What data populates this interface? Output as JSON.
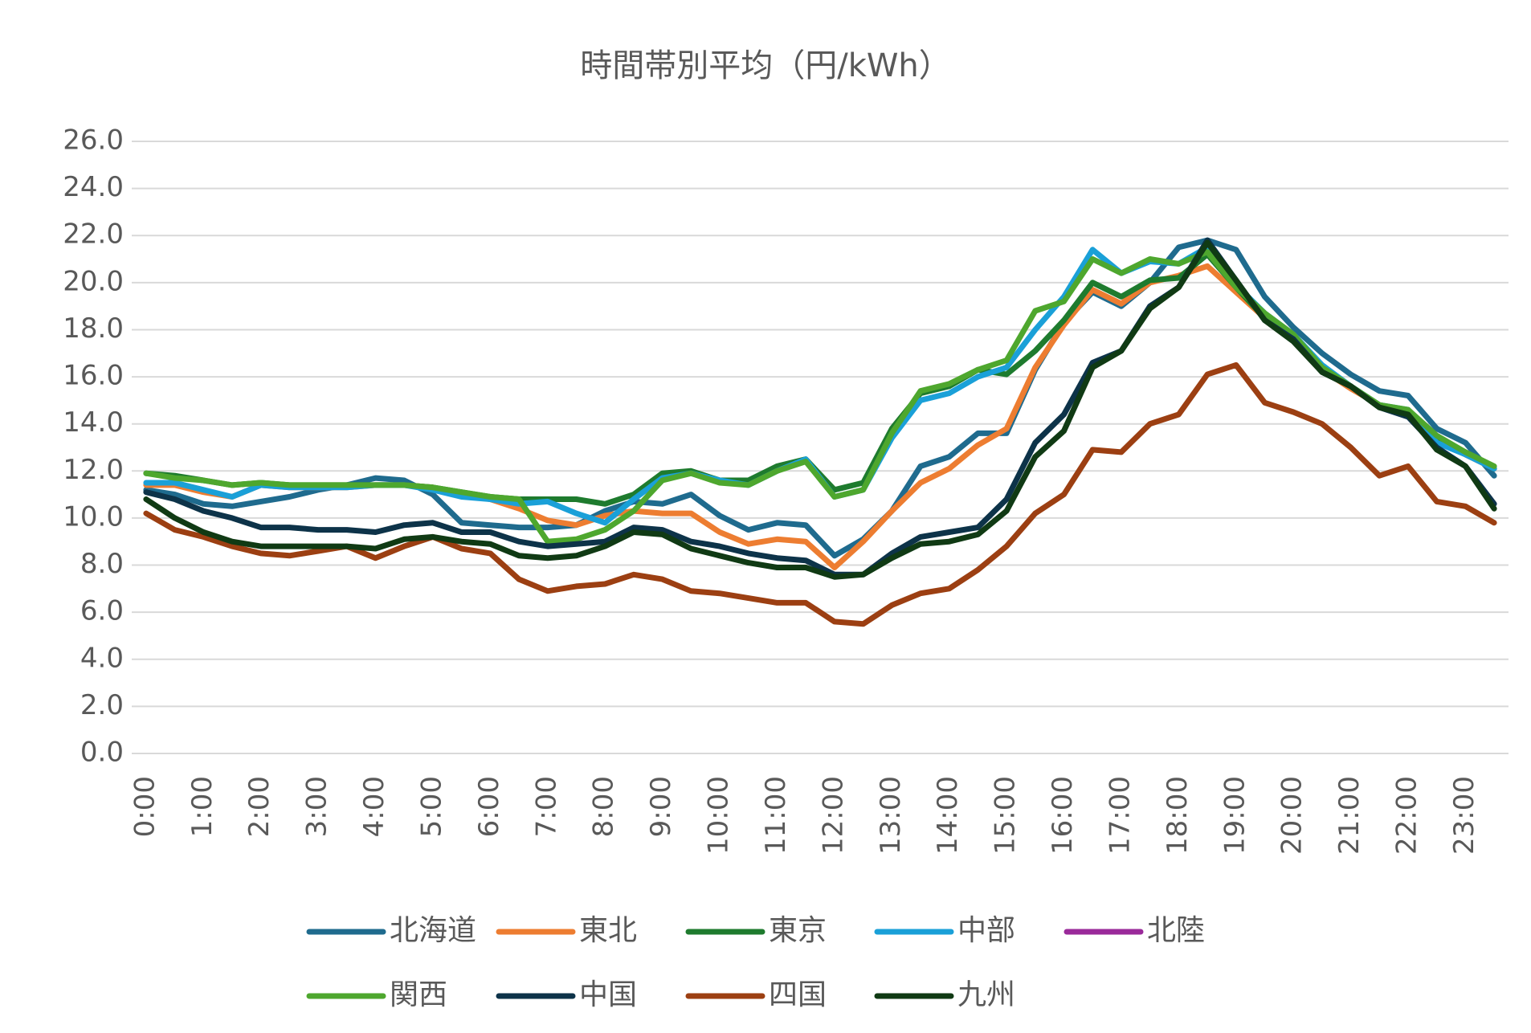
{
  "chart_data": {
    "type": "line",
    "title": "時間帯別平均（円/kWh）",
    "categories": [
      "0:00",
      null,
      "1:00",
      null,
      "2:00",
      null,
      "3:00",
      null,
      "4:00",
      null,
      "5:00",
      null,
      "6:00",
      null,
      "7:00",
      null,
      "8:00",
      null,
      "9:00",
      null,
      "10:00",
      null,
      "11:00",
      null,
      "12:00",
      null,
      "13:00",
      null,
      "14:00",
      null,
      "15:00",
      null,
      "16:00",
      null,
      "17:00",
      null,
      "18:00",
      null,
      "19:00",
      null,
      "20:00",
      null,
      "21:00",
      null,
      "22:00",
      null,
      "23:00",
      null
    ],
    "series": [
      {
        "name": "北海道",
        "color": "#1f6b8e",
        "values": [
          11.2,
          11.0,
          10.6,
          10.5,
          10.7,
          10.9,
          11.2,
          11.4,
          11.7,
          11.6,
          11.0,
          9.8,
          9.7,
          9.6,
          9.6,
          9.7,
          10.3,
          10.7,
          10.6,
          11.0,
          10.1,
          9.5,
          9.8,
          9.7,
          8.4,
          9.1,
          10.3,
          12.2,
          12.6,
          13.6,
          13.6,
          16.3,
          18.3,
          19.6,
          19.0,
          20.0,
          21.5,
          21.8,
          21.4,
          19.4,
          18.1,
          17.0,
          16.1,
          15.4,
          15.2,
          13.8,
          13.2,
          11.8
        ]
      },
      {
        "name": "東北",
        "color": "#ed7d31",
        "values": [
          11.4,
          11.4,
          11.1,
          10.9,
          11.4,
          11.3,
          11.3,
          11.3,
          11.4,
          11.4,
          11.3,
          11.0,
          10.8,
          10.4,
          9.9,
          9.7,
          10.1,
          10.3,
          10.2,
          10.2,
          9.4,
          8.9,
          9.1,
          9.0,
          7.9,
          9.0,
          10.3,
          11.5,
          12.1,
          13.1,
          13.8,
          16.4,
          18.2,
          19.7,
          19.1,
          20.0,
          20.3,
          20.7,
          19.6,
          18.5,
          17.6,
          16.3,
          15.5,
          14.8,
          14.5,
          13.3,
          12.7,
          12.1
        ]
      },
      {
        "name": "東京",
        "color": "#1e7b2e",
        "values": [
          11.9,
          11.8,
          11.6,
          11.4,
          11.5,
          11.4,
          11.4,
          11.4,
          11.4,
          11.4,
          11.3,
          11.1,
          10.9,
          10.8,
          10.8,
          10.8,
          10.6,
          11.0,
          11.9,
          12.0,
          11.6,
          11.6,
          12.2,
          12.5,
          11.2,
          11.5,
          13.8,
          15.3,
          15.6,
          16.3,
          16.1,
          17.1,
          18.4,
          20.0,
          19.4,
          20.1,
          20.2,
          21.2,
          19.8,
          18.5,
          17.6,
          16.2,
          15.6,
          14.7,
          14.5,
          13.4,
          12.8,
          12.1
        ]
      },
      {
        "name": "中部",
        "color": "#1aa0d8",
        "values": [
          11.5,
          11.5,
          11.2,
          10.9,
          11.4,
          11.3,
          11.3,
          11.3,
          11.4,
          11.4,
          11.2,
          10.9,
          10.8,
          10.6,
          10.7,
          10.2,
          9.8,
          10.8,
          11.7,
          11.9,
          11.6,
          11.4,
          12.0,
          12.5,
          10.9,
          11.2,
          13.4,
          15.0,
          15.3,
          16.0,
          16.4,
          18.0,
          19.4,
          21.4,
          20.4,
          20.9,
          20.8,
          21.5,
          19.9,
          18.7,
          17.8,
          16.5,
          15.6,
          14.8,
          14.6,
          13.2,
          12.7,
          12.1
        ]
      },
      {
        "name": "北陸",
        "color": "#9a2a9a",
        "values": [
          null,
          null,
          null,
          null,
          null,
          null,
          null,
          null,
          null,
          null,
          null,
          null,
          null,
          null,
          null,
          null,
          null,
          null,
          null,
          null,
          null,
          null,
          null,
          null,
          null,
          null,
          null,
          null,
          null,
          null,
          null,
          null,
          null,
          null,
          null,
          null,
          null,
          null,
          null,
          null,
          null,
          null,
          null,
          null,
          null,
          null,
          null,
          null
        ]
      },
      {
        "name": "関西",
        "color": "#4ea72e",
        "values": [
          11.9,
          11.7,
          11.6,
          11.4,
          11.5,
          11.4,
          11.4,
          11.4,
          11.4,
          11.4,
          11.3,
          11.1,
          10.9,
          10.8,
          9.0,
          9.1,
          9.5,
          10.3,
          11.6,
          11.9,
          11.5,
          11.4,
          12.0,
          12.4,
          10.9,
          11.2,
          13.6,
          15.4,
          15.7,
          16.3,
          16.7,
          18.8,
          19.2,
          21.0,
          20.4,
          21.0,
          20.8,
          21.3,
          19.8,
          18.7,
          17.8,
          16.4,
          15.6,
          14.8,
          14.6,
          13.5,
          12.8,
          12.2
        ]
      },
      {
        "name": "中国",
        "color": "#0d3349",
        "values": [
          11.1,
          10.8,
          10.3,
          10.0,
          9.6,
          9.6,
          9.5,
          9.5,
          9.4,
          9.7,
          9.8,
          9.4,
          9.4,
          9.0,
          8.8,
          8.9,
          9.0,
          9.6,
          9.5,
          9.0,
          8.8,
          8.5,
          8.3,
          8.2,
          7.6,
          7.6,
          8.5,
          9.2,
          9.4,
          9.6,
          10.8,
          13.2,
          14.4,
          16.6,
          17.1,
          19.0,
          19.8,
          21.8,
          20.1,
          18.4,
          17.6,
          16.2,
          15.6,
          14.7,
          14.3,
          13.0,
          12.2,
          10.6
        ]
      },
      {
        "name": "四国",
        "color": "#9c3f12",
        "values": [
          10.2,
          9.5,
          9.2,
          8.8,
          8.5,
          8.4,
          8.6,
          8.8,
          8.3,
          8.8,
          9.2,
          8.7,
          8.5,
          7.4,
          6.9,
          7.1,
          7.2,
          7.6,
          7.4,
          6.9,
          6.8,
          6.6,
          6.4,
          6.4,
          5.6,
          5.5,
          6.3,
          6.8,
          7.0,
          7.8,
          8.8,
          10.2,
          11.0,
          12.9,
          12.8,
          14.0,
          14.4,
          16.1,
          16.5,
          14.9,
          14.5,
          14.0,
          13.0,
          11.8,
          12.2,
          10.7,
          10.5,
          9.8
        ]
      },
      {
        "name": "九州",
        "color": "#103a14",
        "values": [
          10.8,
          10.0,
          9.4,
          9.0,
          8.8,
          8.8,
          8.8,
          8.8,
          8.7,
          9.1,
          9.2,
          9.0,
          8.9,
          8.4,
          8.3,
          8.4,
          8.8,
          9.4,
          9.3,
          8.7,
          8.4,
          8.1,
          7.9,
          7.9,
          7.5,
          7.6,
          8.3,
          8.9,
          9.0,
          9.3,
          10.3,
          12.6,
          13.7,
          16.4,
          17.1,
          18.9,
          19.8,
          21.7,
          20.1,
          18.4,
          17.5,
          16.2,
          15.6,
          14.7,
          14.4,
          12.9,
          12.2,
          10.4
        ]
      }
    ],
    "ylim": [
      0,
      26
    ],
    "yticks": [
      {
        "value": 0,
        "label": "0.0"
      },
      {
        "value": 2,
        "label": "2.0"
      },
      {
        "value": 4,
        "label": "4.0"
      },
      {
        "value": 6,
        "label": "6.0"
      },
      {
        "value": 8,
        "label": "8.0"
      },
      {
        "value": 10,
        "label": "10.0"
      },
      {
        "value": 12,
        "label": "12.0"
      },
      {
        "value": 14,
        "label": "14.0"
      },
      {
        "value": 16,
        "label": "16.0"
      },
      {
        "value": 18,
        "label": "18.0"
      },
      {
        "value": 20,
        "label": "20.0"
      },
      {
        "value": 22,
        "label": "22.0"
      },
      {
        "value": 24,
        "label": "24.0"
      },
      {
        "value": 26,
        "label": "26.0"
      }
    ],
    "grid": true,
    "legend": "bottom"
  }
}
